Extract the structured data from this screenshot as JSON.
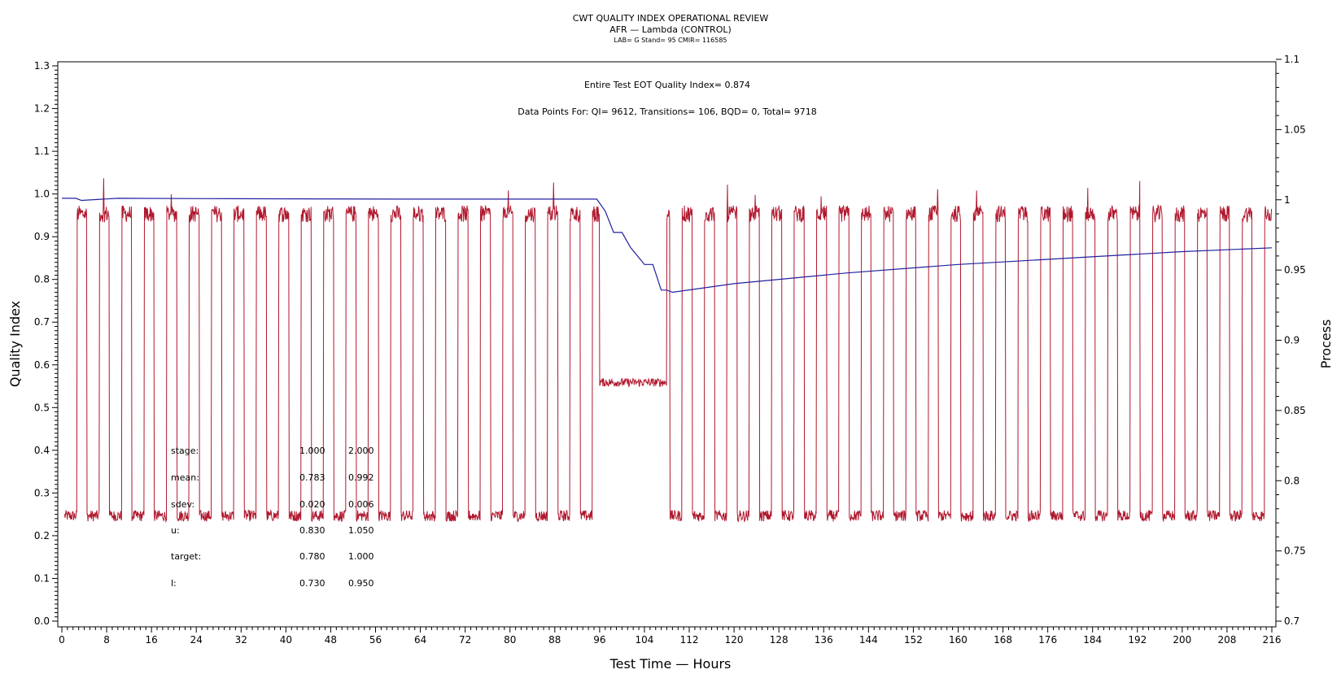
{
  "chart_data": {
    "type": "line",
    "title": "CWT QUALITY INDEX OPERATIONAL REVIEW",
    "subtitle": "AFR — Lambda (CONTROL)",
    "subtitle2": "LAB= G Stand= 95 CMIR= 116585",
    "xlabel": "Test Time — Hours",
    "ylabel": "Quality Index",
    "y2label": "Process",
    "xlim": [
      0,
      216
    ],
    "ylim": [
      0.0,
      1.3
    ],
    "y2lim": [
      0.7,
      1.1
    ],
    "xticks": [
      "0",
      "8",
      "16",
      "24",
      "32",
      "40",
      "48",
      "56",
      "64",
      "72",
      "80",
      "88",
      "96",
      "104",
      "112",
      "120",
      "128",
      "136",
      "144",
      "152",
      "160",
      "168",
      "176",
      "184",
      "192",
      "200",
      "208",
      "216"
    ],
    "yticks": [
      "0.0",
      "0.1",
      "0.2",
      "0.3",
      "0.4",
      "0.5",
      "0.6",
      "0.7",
      "0.8",
      "0.9",
      "1.0",
      "1.1",
      "1.2",
      "1.3"
    ],
    "y2ticks": [
      "0.7",
      "0.75",
      "0.8",
      "0.85",
      "0.9",
      "0.95",
      "1",
      "1.05",
      "1.1"
    ],
    "annotations": {
      "eot": "Entire Test EOT Quality Index=   0.874",
      "points": "Data Points For: QI=  9612, Transitions=   106, BQD=     0, Total=  9718"
    },
    "stats_table": {
      "rows": [
        {
          "label": "stage:",
          "v1": "1.000",
          "v2": "2.000"
        },
        {
          "label": "mean:",
          "v1": "0.783",
          "v2": "0.992"
        },
        {
          "label": "sdev:",
          "v1": "0.020",
          "v2": "0.006"
        },
        {
          "label": "u:",
          "v1": "0.830",
          "v2": "1.050"
        },
        {
          "label": "target:",
          "v1": "0.780",
          "v2": "1.000"
        },
        {
          "label": "l:",
          "v1": "0.730",
          "v2": "0.950"
        }
      ]
    },
    "series": [
      {
        "name": "",
        "axis": "right",
        "color": "#b0182e",
        "description_type": "square-wave",
        "cycle_hours": 4.0,
        "low_level": 0.775,
        "high_level": 0.99,
        "start_hour": 0.5,
        "end_hour": 216,
        "gap_segment": {
          "start_hour": 96,
          "end_hour": 108,
          "level": 0.87
        }
      },
      {
        "name": "",
        "axis": "left",
        "color": "#2020a0",
        "points": [
          [
            0,
            0.99
          ],
          [
            2.5,
            0.99
          ],
          [
            3.5,
            0.985
          ],
          [
            10,
            0.99
          ],
          [
            30,
            0.989
          ],
          [
            60,
            0.988
          ],
          [
            95.5,
            0.988
          ],
          [
            97,
            0.96
          ],
          [
            98.5,
            0.91
          ],
          [
            100,
            0.91
          ],
          [
            101.5,
            0.875
          ],
          [
            104,
            0.835
          ],
          [
            105.5,
            0.835
          ],
          [
            107,
            0.775
          ],
          [
            108,
            0.775
          ],
          [
            109,
            0.77
          ],
          [
            120,
            0.79
          ],
          [
            140,
            0.815
          ],
          [
            160,
            0.835
          ],
          [
            180,
            0.85
          ],
          [
            200,
            0.865
          ],
          [
            216,
            0.874
          ]
        ]
      }
    ]
  }
}
